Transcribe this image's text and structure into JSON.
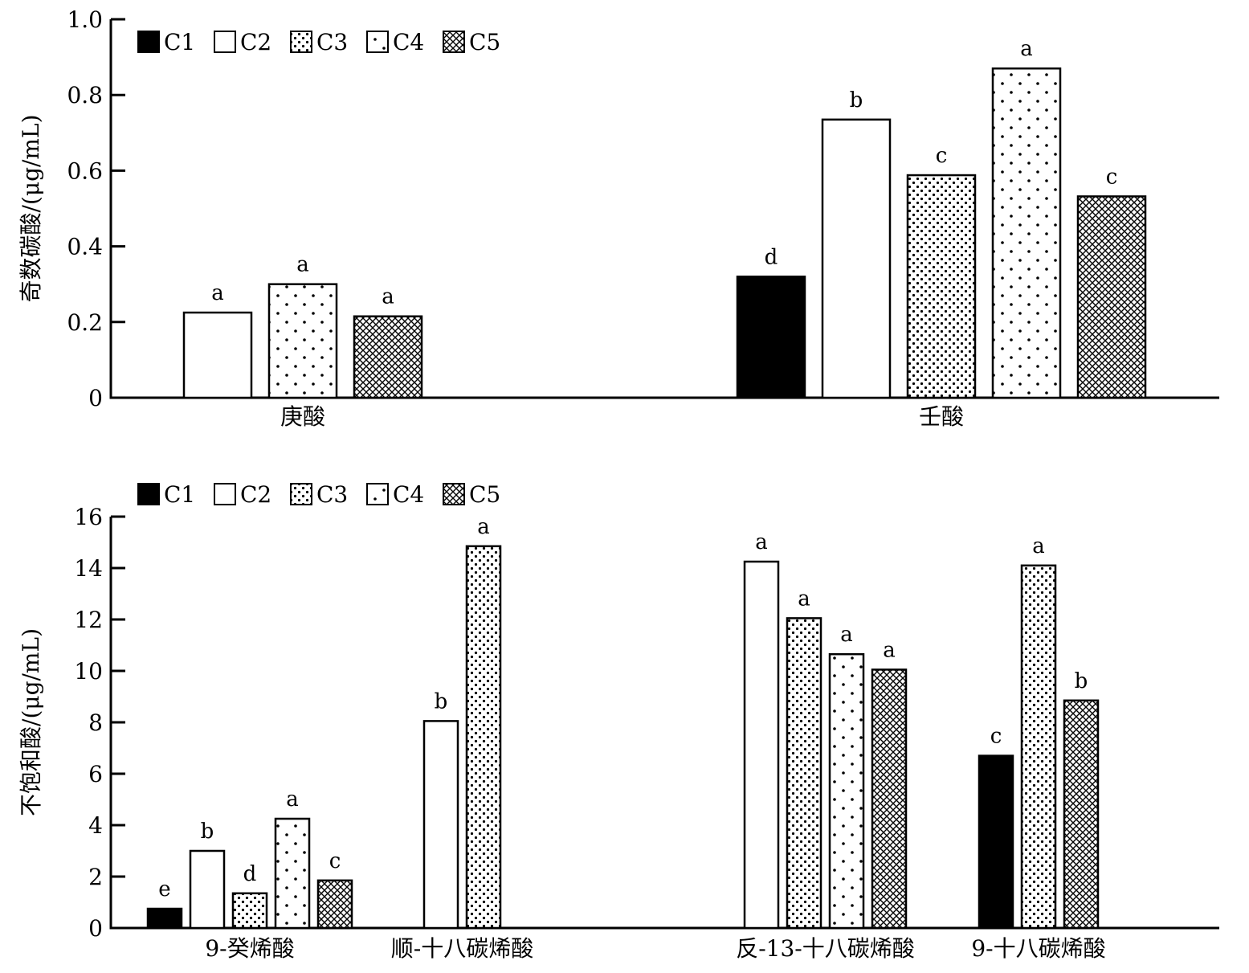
{
  "chart_data": [
    {
      "type": "bar",
      "ylabel": "奇数碳酸/(μg/mL)",
      "ylim": [
        0,
        1.0
      ],
      "yticks": [
        0,
        0.2,
        0.4,
        0.6,
        0.8,
        1.0
      ],
      "ytick_labels": [
        "0",
        "0.2",
        "0.4",
        "0.6",
        "0.8",
        "1.0"
      ],
      "legend_position": "top-left",
      "categories": [
        "庚酸",
        "壬酸"
      ],
      "series": [
        {
          "name": "C1",
          "values": [
            0,
            0.32
          ],
          "letters": [
            "",
            "d"
          ]
        },
        {
          "name": "C2",
          "values": [
            0.225,
            0.735
          ],
          "letters": [
            "a",
            "b"
          ]
        },
        {
          "name": "C3",
          "values": [
            0,
            0.588
          ],
          "letters": [
            "",
            "c"
          ]
        },
        {
          "name": "C4",
          "values": [
            0.3,
            0.87
          ],
          "letters": [
            "a",
            "a"
          ]
        },
        {
          "name": "C5",
          "values": [
            0.215,
            0.532
          ],
          "letters": [
            "a",
            "c"
          ]
        }
      ]
    },
    {
      "type": "bar",
      "ylabel": "不饱和酸/(μg/mL)",
      "ylim": [
        0,
        16
      ],
      "yticks": [
        0,
        2,
        4,
        6,
        8,
        10,
        12,
        14,
        16
      ],
      "ytick_labels": [
        "0",
        "2",
        "4",
        "6",
        "8",
        "10",
        "12",
        "14",
        "16"
      ],
      "legend_position": "top-left",
      "categories": [
        "9-癸烯酸",
        "顺-十八碳烯酸",
        "反-13-十八碳烯酸",
        "9-十八碳烯酸"
      ],
      "series": [
        {
          "name": "C1",
          "values": [
            0.75,
            0,
            0,
            6.7
          ],
          "letters": [
            "e",
            "",
            "",
            "c"
          ]
        },
        {
          "name": "C2",
          "values": [
            3.0,
            8.05,
            14.25,
            0
          ],
          "letters": [
            "b",
            "b",
            "a",
            ""
          ]
        },
        {
          "name": "C3",
          "values": [
            1.35,
            14.85,
            12.05,
            14.1
          ],
          "letters": [
            "d",
            "a",
            "a",
            "a"
          ]
        },
        {
          "name": "C4",
          "values": [
            4.25,
            0,
            10.65,
            0
          ],
          "letters": [
            "a",
            "",
            "a",
            ""
          ]
        },
        {
          "name": "C5",
          "values": [
            1.85,
            0,
            10.05,
            8.85
          ],
          "letters": [
            "c",
            "",
            "a",
            "b"
          ]
        }
      ]
    }
  ],
  "series_colors": {
    "C1": "#000000",
    "C2": "#ffffff",
    "C3": "dense-dots",
    "C4": "sparse-dots",
    "C5": "crosshatch"
  }
}
